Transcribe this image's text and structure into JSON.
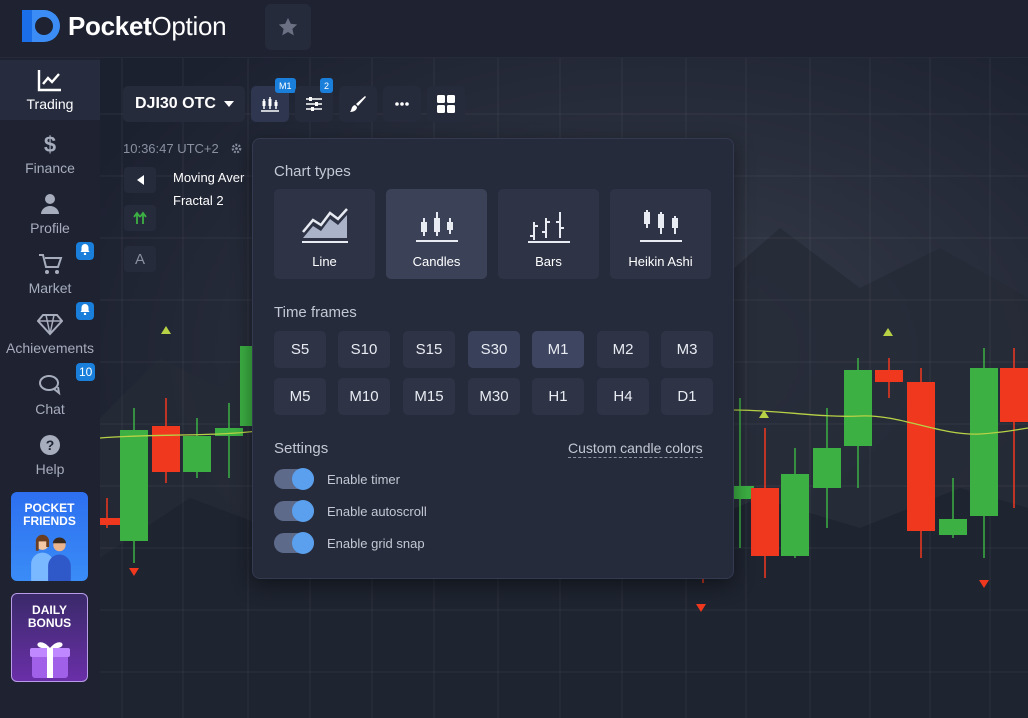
{
  "header": {
    "brand_bold": "Pocket",
    "brand_light": "Option"
  },
  "sidebar": {
    "items": [
      {
        "label": "Trading",
        "icon": "chart-line-icon"
      },
      {
        "label": "Finance",
        "icon": "dollar-icon"
      },
      {
        "label": "Profile",
        "icon": "user-icon"
      },
      {
        "label": "Market",
        "icon": "cart-icon"
      },
      {
        "label": "Achievements",
        "icon": "diamond-icon"
      },
      {
        "label": "Chat",
        "icon": "chat-icon",
        "badge": "10"
      },
      {
        "label": "Help",
        "icon": "help-icon"
      }
    ],
    "promo_friends": {
      "line1": "POCKET",
      "line2": "FRIENDS"
    },
    "promo_bonus": {
      "line1": "DAILY",
      "line2": "BONUS"
    }
  },
  "toolbar": {
    "asset": "DJI30 OTC",
    "chart_type_badge": "M1",
    "indicators_badge": "2",
    "time": "10:36:47 UTC+2",
    "indicator_1": "Moving Aver",
    "indicator_2": "Fractal 2",
    "font_btn": "A"
  },
  "popup": {
    "chart_types_title": "Chart types",
    "chart_types": [
      "Line",
      "Candles",
      "Bars",
      "Heikin Ashi"
    ],
    "active_chart_type": "Candles",
    "time_frames_title": "Time frames",
    "time_frames_row1": [
      "S5",
      "S10",
      "S15",
      "S30",
      "M1",
      "M2",
      "M3"
    ],
    "time_frames_row2": [
      "M5",
      "M10",
      "M15",
      "M30",
      "H1",
      "H4",
      "D1"
    ],
    "selected_time_frame": "M1",
    "settings_title": "Settings",
    "custom_link": "Custom candle colors",
    "toggles": [
      {
        "label": "Enable timer",
        "on": true
      },
      {
        "label": "Enable autoscroll",
        "on": true
      },
      {
        "label": "Enable grid snap",
        "on": true
      }
    ]
  },
  "colors": {
    "bull": "#3cb043",
    "bear": "#f0381f",
    "accent": "#1a7fdb",
    "moving_average": "#b8d246"
  }
}
